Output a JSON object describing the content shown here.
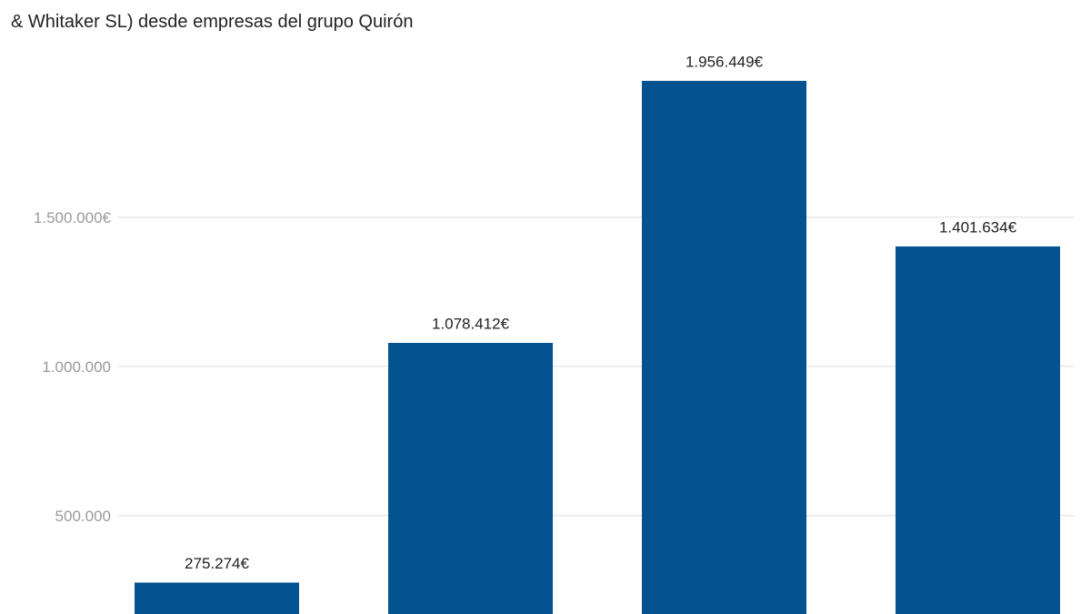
{
  "chart_data": {
    "type": "bar",
    "title": "& Whitaker SL) desde empresas del grupo Quirón",
    "categories": [
      null,
      null,
      null,
      null
    ],
    "values": [
      275274,
      1078412,
      1956449,
      1401634
    ],
    "value_labels": [
      "275.274€",
      "1.078.412€",
      "1.956.449€",
      "1.401.634€"
    ],
    "color": "#04528f",
    "ylim": [
      170000,
      2075000
    ],
    "yticks": [
      {
        "value": 500000,
        "label": "500.000"
      },
      {
        "value": 1000000,
        "label": "1.000.000"
      },
      {
        "value": 1500000,
        "label": "1.500.000€"
      }
    ],
    "grid": true
  }
}
